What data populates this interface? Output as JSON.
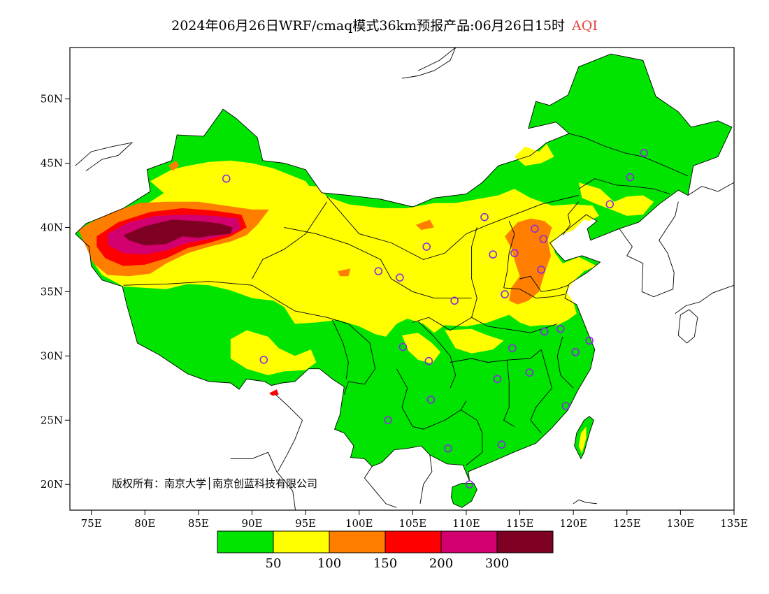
{
  "title": {
    "main": "2024年06月26日WRF/cmaq模式36km预报产品:06月26日15时",
    "variable": "AQI"
  },
  "map": {
    "lon_range": [
      73,
      135
    ],
    "lat_range": [
      18,
      54
    ],
    "lon_ticks": [
      {
        "value": 75,
        "label": "75E"
      },
      {
        "value": 80,
        "label": "80E"
      },
      {
        "value": 85,
        "label": "85E"
      },
      {
        "value": 90,
        "label": "90E"
      },
      {
        "value": 95,
        "label": "95E"
      },
      {
        "value": 100,
        "label": "100E"
      },
      {
        "value": 105,
        "label": "105E"
      },
      {
        "value": 110,
        "label": "110E"
      },
      {
        "value": 115,
        "label": "115E"
      },
      {
        "value": 120,
        "label": "120E"
      },
      {
        "value": 125,
        "label": "125E"
      },
      {
        "value": 130,
        "label": "130E"
      },
      {
        "value": 135,
        "label": "135E"
      }
    ],
    "lat_ticks": [
      {
        "value": 20,
        "label": "20N"
      },
      {
        "value": 25,
        "label": "25N"
      },
      {
        "value": 30,
        "label": "30N"
      },
      {
        "value": 35,
        "label": "35N"
      },
      {
        "value": 40,
        "label": "40N"
      },
      {
        "value": 45,
        "label": "45N"
      },
      {
        "value": 50,
        "label": "50N"
      }
    ],
    "stations": [
      [
        87.6,
        43.8
      ],
      [
        91.1,
        29.7
      ],
      [
        101.8,
        36.6
      ],
      [
        103.8,
        36.1
      ],
      [
        106.3,
        38.5
      ],
      [
        111.7,
        40.8
      ],
      [
        112.5,
        37.9
      ],
      [
        114.5,
        38.0
      ],
      [
        116.4,
        39.9
      ],
      [
        117.2,
        39.1
      ],
      [
        117.0,
        36.7
      ],
      [
        113.6,
        34.8
      ],
      [
        108.9,
        34.3
      ],
      [
        104.1,
        30.7
      ],
      [
        106.5,
        29.6
      ],
      [
        106.7,
        26.6
      ],
      [
        102.7,
        25.0
      ],
      [
        108.3,
        22.8
      ],
      [
        113.3,
        23.1
      ],
      [
        110.3,
        20.0
      ],
      [
        112.9,
        28.2
      ],
      [
        114.3,
        30.6
      ],
      [
        115.9,
        28.7
      ],
      [
        117.3,
        31.9
      ],
      [
        118.8,
        32.1
      ],
      [
        120.2,
        30.3
      ],
      [
        121.5,
        31.2
      ],
      [
        119.3,
        26.1
      ],
      [
        123.4,
        41.8
      ],
      [
        125.3,
        43.9
      ],
      [
        126.6,
        45.8
      ]
    ],
    "copyright": "版权所有：南京大学│南京创蓝科技有限公司"
  },
  "legend": {
    "colors": [
      "#00e400",
      "#ffff00",
      "#ff7e00",
      "#ff0000",
      "#d2006e",
      "#7e0023"
    ],
    "labels": [
      "50",
      "100",
      "150",
      "200",
      "300"
    ]
  }
}
